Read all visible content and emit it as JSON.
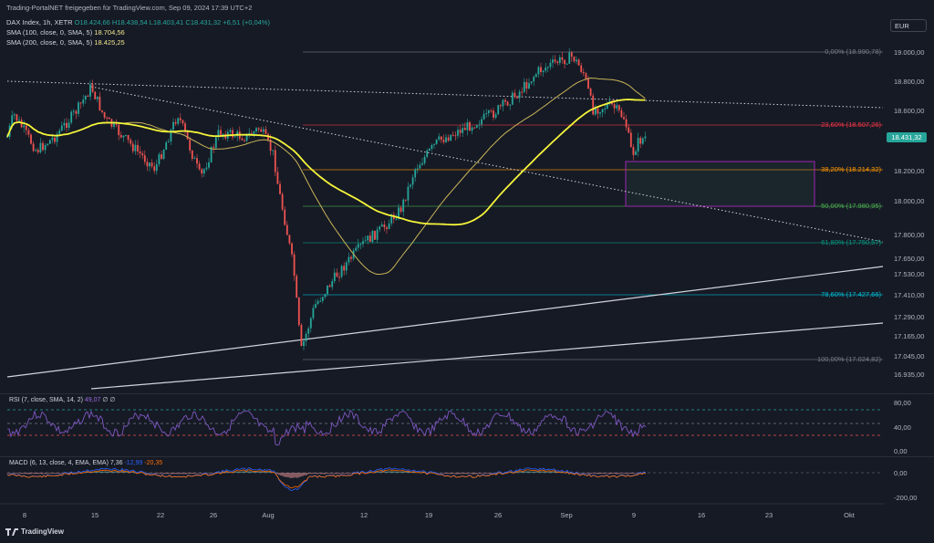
{
  "header": {
    "publisher": "Trading-PortalNET freigegeben für TradingView.com, Sep 09, 2024 17:39 UTC+2",
    "symbol": "DAX Index, 1h, XETR",
    "ohlc": "O18.424,66 H18.438,54 L18.403,41 C18.431,32 +6,51 (+0,04%)",
    "sma100_label": "SMA (100, close, 0, SMA, 5)",
    "sma100_value": "18.704,56",
    "sma200_label": "SMA (200, close, 0, SMA, 5)",
    "sma200_value": "18.425,25"
  },
  "currency": "EUR",
  "last_price": "18.431,32",
  "price_axis": [
    "19.000,00",
    "18.800,00",
    "18.600,00",
    "18.200,00",
    "18.000,00",
    "17.800,00",
    "17.650,00",
    "17.530,00",
    "17.410,00",
    "17.290,00",
    "17.165,00",
    "17.045,00",
    "16.935,00"
  ],
  "fib_levels": [
    {
      "label": "0,00% (18.990,78)",
      "color": "#787b86"
    },
    {
      "label": "23,60% (18.507,26)",
      "color": "#f23645"
    },
    {
      "label": "38,20% (18.214,32)",
      "color": "#ff9800"
    },
    {
      "label": "50,00% (17.980,95)",
      "color": "#4caf50"
    },
    {
      "label": "61,80% (17.750,57)",
      "color": "#089981"
    },
    {
      "label": "78,60% (17.427,66)",
      "color": "#00bcd4"
    },
    {
      "label": "100,00% (17.024,82)",
      "color": "#787b86"
    }
  ],
  "rsi": {
    "label": "RSI (7, close, SMA, 14, 2)",
    "value": "49,07",
    "extra": "∅ ∅",
    "axis": [
      "80,00",
      "40,00",
      "0,00"
    ]
  },
  "macd": {
    "label": "MACD (6, 13, close, 4, EMA, EMA)",
    "v1": "7,36",
    "v2": "-12,99",
    "v3": "-20,35",
    "axis": [
      "0,00",
      "-200,00"
    ]
  },
  "time_axis": [
    "8",
    "15",
    "22",
    "26",
    "Aug",
    "12",
    "19",
    "26",
    "Sep",
    "9",
    "16",
    "23",
    "Okt"
  ],
  "footer": "TradingView",
  "colors": {
    "up": "#26a69a",
    "down": "#ef5350",
    "sma100": "#c9b458",
    "sma200": "#f5f53a",
    "rsi": "#7e57c2"
  }
}
